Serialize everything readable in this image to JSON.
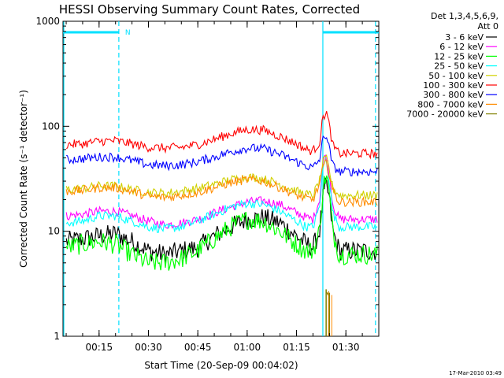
{
  "chart_data": {
    "type": "line",
    "title": "HESSI Observing Summary Count Rates, Corrected",
    "xlabel": "Start Time (20-Sep-09 00:04:02)",
    "ylabel": "Corrected Count Rate (s⁻¹ detector⁻¹)",
    "y_scale": "log",
    "ylim": [
      1,
      1000
    ],
    "xlim": [
      "00:04:02",
      "01:40:00"
    ],
    "x_ticks": [
      "00:15",
      "00:30",
      "00:45",
      "01:00",
      "01:15",
      "01:30"
    ],
    "y_ticks": [
      "1",
      "10",
      "100",
      "1000"
    ],
    "legend_header": [
      "Det 1,3,4,5,6,9,",
      "Att 0"
    ],
    "legend_position": "right",
    "timestamp": "17-Mar-2010 03:49",
    "flags": [
      {
        "label": "N",
        "start": "00:04:02",
        "end": "00:21:00",
        "color": "#00e0ff"
      },
      {
        "label": "",
        "start": "01:23:00",
        "end": "01:40:00",
        "color": "#00e0ff"
      }
    ],
    "markers": [
      {
        "time": "00:21:00",
        "style": "dashed",
        "color": "#00e0ff"
      },
      {
        "time": "01:23:00",
        "style": "solid",
        "color": "#00e0ff"
      },
      {
        "time": "01:39:00",
        "style": "dashed",
        "color": "#00e0ff"
      }
    ],
    "x": [
      "00:05",
      "00:10",
      "00:15",
      "00:20",
      "00:25",
      "00:30",
      "00:35",
      "00:40",
      "00:45",
      "00:50",
      "00:55",
      "01:00",
      "01:05",
      "01:10",
      "01:15",
      "01:18",
      "01:20",
      "01:22",
      "01:23",
      "01:24",
      "01:25",
      "01:26",
      "01:28",
      "01:30",
      "01:35",
      "01:40"
    ],
    "series": [
      {
        "name": "3 - 6 keV",
        "color": "#000000",
        "values": [
          8,
          8.5,
          9,
          9.5,
          8,
          6.5,
          6,
          6.5,
          7,
          9,
          11,
          13,
          13.5,
          12,
          9,
          7.5,
          7,
          10,
          20,
          28,
          20,
          10,
          6.5,
          6.5,
          6.5,
          6.5
        ]
      },
      {
        "name": "6 - 12 keV",
        "color": "#ff00ff",
        "values": [
          14,
          14.5,
          15.5,
          15.5,
          14,
          12.5,
          11.5,
          12,
          13,
          15,
          17,
          19,
          19.5,
          18,
          15,
          13.5,
          13,
          20,
          45,
          55,
          35,
          18,
          13,
          13,
          13,
          13
        ]
      },
      {
        "name": "12 - 25 keV",
        "color": "#00ff00",
        "values": [
          7,
          7.5,
          8,
          7.5,
          6,
          5,
          5,
          5.5,
          6.5,
          8.5,
          11,
          13,
          12.5,
          10,
          7.5,
          6.5,
          6.5,
          10,
          25,
          35,
          22,
          10,
          6,
          6,
          6,
          6
        ]
      },
      {
        "name": "25 - 50 keV",
        "color": "#00ffff",
        "values": [
          12,
          12.5,
          14,
          14,
          12.5,
          11,
          10.5,
          11,
          12.5,
          14.5,
          17,
          18.5,
          18,
          15.5,
          12.5,
          11,
          11,
          17,
          40,
          50,
          30,
          15,
          11,
          11,
          11,
          11
        ]
      },
      {
        "name": "50 - 100 keV",
        "color": "#d0d000",
        "values": [
          25,
          25.5,
          27,
          27,
          25,
          23.5,
          23,
          24,
          25.5,
          28,
          31,
          33,
          31.5,
          28,
          24,
          22.5,
          22,
          30,
          45,
          50,
          38,
          26,
          22,
          22,
          22,
          22
        ]
      },
      {
        "name": "100 - 300 keV",
        "color": "#ff0000",
        "values": [
          67,
          68,
          72,
          73,
          68,
          63,
          62,
          63,
          67,
          75,
          85,
          93,
          92,
          80,
          68,
          60,
          58,
          70,
          120,
          140,
          100,
          65,
          55,
          55,
          55,
          55
        ]
      },
      {
        "name": "300 - 800 keV",
        "color": "#0000ff",
        "values": [
          48,
          49,
          51,
          51,
          47,
          43,
          42,
          43,
          46,
          51,
          57,
          62,
          61,
          54,
          46,
          42,
          40,
          48,
          75,
          85,
          60,
          42,
          37,
          37,
          37,
          37
        ]
      },
      {
        "name": "800 - 7000 keV",
        "color": "#ff8c00",
        "values": [
          24,
          24.5,
          26,
          26,
          24,
          21.5,
          21,
          22,
          23.5,
          26,
          29,
          31,
          30,
          26,
          22,
          20.5,
          20,
          28,
          40,
          45,
          35,
          24,
          19,
          19,
          19,
          19
        ]
      },
      {
        "name": "7000 - 20000 keV",
        "color": "#808000",
        "values": [
          null,
          null,
          null,
          null,
          null,
          null,
          null,
          null,
          null,
          null,
          null,
          null,
          null,
          null,
          null,
          null,
          null,
          null,
          null,
          2.8,
          2.6,
          null,
          null,
          null,
          null,
          null
        ]
      }
    ]
  }
}
